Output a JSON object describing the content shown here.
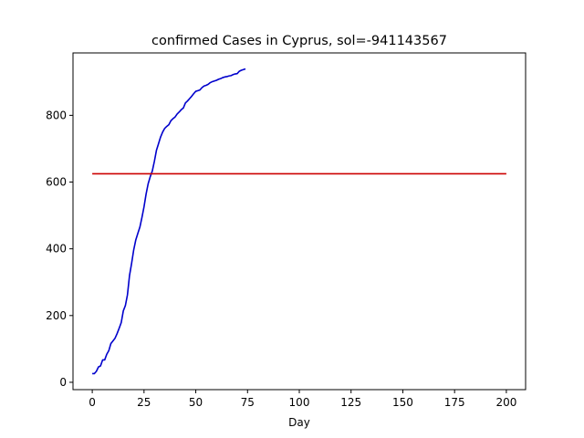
{
  "chart_data": {
    "type": "line",
    "title": "confirmed Cases in Cyprus, sol=-941143567",
    "xlabel": "Day",
    "ylabel": "",
    "xlim": [
      -9.3,
      209.3
    ],
    "ylim": [
      -22,
      987
    ],
    "x_ticks": [
      0,
      25,
      50,
      75,
      100,
      125,
      150,
      175,
      200
    ],
    "y_ticks": [
      0,
      200,
      400,
      600,
      800
    ],
    "grid": false,
    "series": [
      {
        "color": "#0000cc",
        "x": [
          0,
          1,
          2,
          3,
          4,
          5,
          6,
          7,
          8,
          9,
          10,
          11,
          12,
          13,
          14,
          15,
          16,
          17,
          18,
          19,
          20,
          21,
          22,
          23,
          24,
          25,
          26,
          27,
          28,
          29,
          30,
          31,
          32,
          33,
          34,
          35,
          36,
          37,
          38,
          39,
          40,
          41,
          42,
          43,
          44,
          45,
          46,
          47,
          48,
          49,
          50,
          51,
          52,
          53,
          54,
          55,
          56,
          57,
          58,
          59,
          60,
          61,
          62,
          63,
          64,
          65,
          66,
          67,
          68,
          69,
          70,
          71,
          72,
          73,
          74
        ],
        "values": [
          26,
          26,
          33,
          46,
          49,
          67,
          67,
          84,
          95,
          116,
          124,
          132,
          146,
          162,
          179,
          214,
          230,
          262,
          320,
          356,
          396,
          426,
          446,
          465,
          494,
          526,
          564,
          595,
          616,
          633,
          662,
          695,
          715,
          735,
          750,
          761,
          767,
          772,
          784,
          790,
          795,
          804,
          810,
          817,
          822,
          837,
          843,
          850,
          857,
          865,
          872,
          874,
          876,
          883,
          888,
          890,
          893,
          898,
          901,
          903,
          905,
          908,
          910,
          913,
          915,
          916,
          918,
          919,
          922,
          924,
          925,
          932,
          935,
          937,
          939
        ]
      },
      {
        "color": "#cc0000",
        "x": [
          0,
          200
        ],
        "values": [
          625,
          625
        ]
      }
    ]
  }
}
